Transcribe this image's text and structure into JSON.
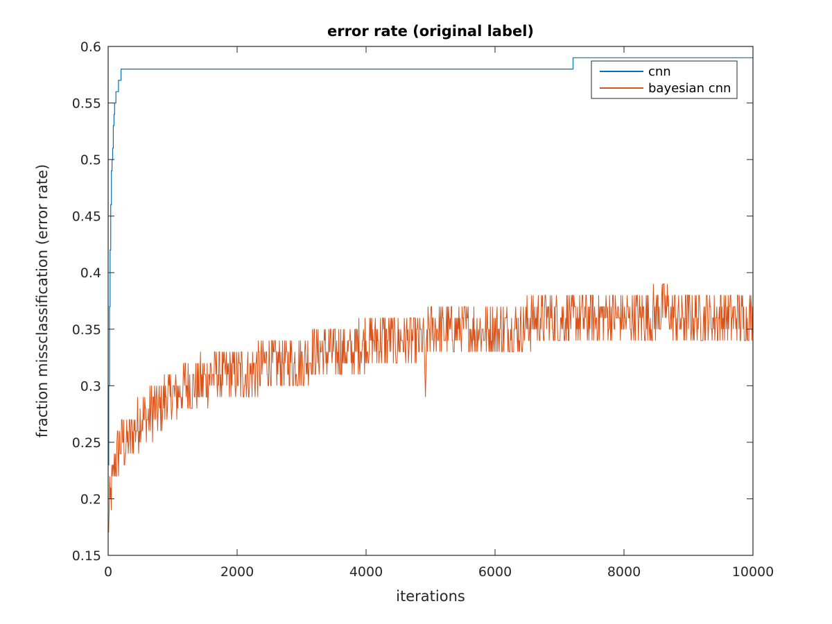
{
  "chart_data": {
    "type": "line",
    "title": "error rate (original label)",
    "xlabel": "iterations",
    "ylabel": "fraction missclassification (error rate)",
    "xlim": [
      0,
      10000
    ],
    "ylim": [
      0.15,
      0.6
    ],
    "xticks": [
      0,
      2000,
      4000,
      6000,
      8000,
      10000
    ],
    "xtick_labels": [
      "0",
      "2000",
      "4000",
      "6000",
      "8000",
      "10000"
    ],
    "yticks": [
      0.15,
      0.2,
      0.25,
      0.3,
      0.35,
      0.4,
      0.45,
      0.5,
      0.55,
      0.6
    ],
    "ytick_labels": [
      "0.15",
      "0.2",
      "0.25",
      "0.3",
      "0.35",
      "0.4",
      "0.45",
      "0.5",
      "0.55",
      "0.6"
    ],
    "grid": false,
    "legend_position": "top-right",
    "series": [
      {
        "name": "cnn",
        "color": "#0072bd",
        "x": [
          0,
          10,
          20,
          30,
          40,
          50,
          60,
          70,
          80,
          90,
          100,
          110,
          120,
          140,
          160,
          180,
          200,
          220,
          240,
          2000,
          4000,
          6000,
          7200,
          7210,
          8000,
          10000
        ],
        "y": [
          0.23,
          0.3,
          0.37,
          0.42,
          0.46,
          0.49,
          0.5,
          0.51,
          0.53,
          0.54,
          0.55,
          0.55,
          0.56,
          0.56,
          0.57,
          0.57,
          0.58,
          0.58,
          0.58,
          0.58,
          0.58,
          0.58,
          0.58,
          0.59,
          0.59,
          0.59
        ]
      },
      {
        "name": "bayesian cnn",
        "color": "#d95319",
        "x": [
          0,
          20,
          40,
          60,
          80,
          100,
          150,
          200,
          300,
          400,
          500,
          600,
          700,
          800,
          900,
          1000,
          1200,
          1400,
          1600,
          1800,
          2000,
          2200,
          2400,
          2600,
          2800,
          3000,
          3200,
          3400,
          3600,
          3800,
          4000,
          4200,
          4400,
          4600,
          4800,
          4900,
          4920,
          4940,
          5000,
          5200,
          5400,
          5600,
          5800,
          6000,
          6200,
          6400,
          6600,
          6800,
          7000,
          7200,
          7400,
          7600,
          7800,
          8000,
          8200,
          8400,
          8600,
          8800,
          9000,
          9200,
          9400,
          9600,
          9800,
          10000
        ],
        "y": [
          0.17,
          0.19,
          0.2,
          0.21,
          0.22,
          0.23,
          0.24,
          0.25,
          0.25,
          0.26,
          0.27,
          0.27,
          0.28,
          0.28,
          0.29,
          0.29,
          0.3,
          0.3,
          0.31,
          0.31,
          0.31,
          0.31,
          0.32,
          0.32,
          0.32,
          0.32,
          0.33,
          0.33,
          0.33,
          0.33,
          0.34,
          0.34,
          0.34,
          0.34,
          0.34,
          0.34,
          0.29,
          0.35,
          0.35,
          0.35,
          0.35,
          0.35,
          0.35,
          0.35,
          0.35,
          0.35,
          0.36,
          0.36,
          0.36,
          0.36,
          0.36,
          0.36,
          0.36,
          0.36,
          0.36,
          0.36,
          0.37,
          0.36,
          0.36,
          0.36,
          0.36,
          0.36,
          0.36,
          0.36
        ],
        "noise_amplitude": 0.025
      }
    ]
  }
}
